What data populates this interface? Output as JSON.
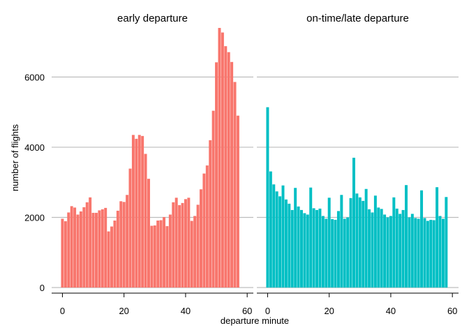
{
  "chart_data": {
    "type": "bar",
    "xlabel": "departure minute",
    "ylabel": "number of flights",
    "ylim": [
      0,
      7500
    ],
    "xlim": [
      -3.5,
      62
    ],
    "yticks": [
      0,
      2000,
      4000,
      6000
    ],
    "xticks": [
      0,
      20,
      40,
      60
    ],
    "grid": "horizontal major gridlines",
    "legend": "none",
    "x": [
      0,
      1,
      2,
      3,
      4,
      5,
      6,
      7,
      8,
      9,
      10,
      11,
      12,
      13,
      14,
      15,
      16,
      17,
      18,
      19,
      20,
      21,
      22,
      23,
      24,
      25,
      26,
      27,
      28,
      29,
      30,
      31,
      32,
      33,
      34,
      35,
      36,
      37,
      38,
      39,
      40,
      41,
      42,
      43,
      44,
      45,
      46,
      47,
      48,
      49,
      50,
      51,
      52,
      53,
      54,
      55,
      56,
      57,
      58,
      59
    ],
    "panels": [
      {
        "label": "early departure",
        "color": "#F8766D",
        "values": [
          1960,
          1890,
          2140,
          2320,
          2280,
          2080,
          2170,
          2290,
          2430,
          2570,
          2130,
          2130,
          2200,
          2230,
          2270,
          1600,
          1740,
          1910,
          2190,
          2460,
          2440,
          2640,
          3390,
          4350,
          4240,
          4350,
          4320,
          3810,
          3100,
          1760,
          1770,
          1910,
          1920,
          2010,
          1750,
          2080,
          2430,
          2560,
          2350,
          2410,
          2520,
          2560,
          1900,
          2040,
          2360,
          2800,
          3250,
          3480,
          4200,
          5040,
          6420,
          7400,
          7270,
          6880,
          6710,
          6430,
          5860,
          4900,
          null,
          null
        ]
      },
      {
        "label": "on-time/late departure",
        "color": "#00BFC4",
        "values": [
          5140,
          3310,
          2940,
          2740,
          2600,
          2910,
          2510,
          2390,
          2210,
          2840,
          2310,
          2210,
          2120,
          2080,
          2850,
          2260,
          2210,
          2250,
          2040,
          1960,
          2560,
          1950,
          1930,
          2180,
          2640,
          1960,
          2000,
          2550,
          3700,
          2680,
          2570,
          2470,
          2810,
          2230,
          2140,
          2620,
          2280,
          2240,
          2080,
          2000,
          2040,
          2570,
          2250,
          2100,
          2210,
          2920,
          2000,
          2100,
          1980,
          1960,
          2770,
          1980,
          1900,
          1930,
          1920,
          2860,
          2040,
          1960,
          2580,
          null
        ]
      }
    ]
  }
}
